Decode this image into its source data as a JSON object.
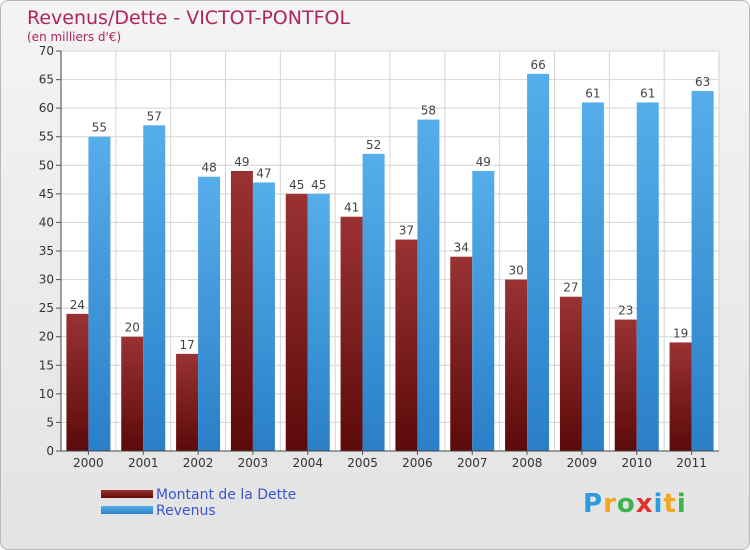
{
  "chart_data": {
    "type": "bar",
    "title": "Revenus/Dette - VICTOT-PONTFOL",
    "subtitle": "(en milliers d'€)",
    "categories": [
      "2000",
      "2001",
      "2002",
      "2003",
      "2004",
      "2005",
      "2006",
      "2007",
      "2008",
      "2009",
      "2010",
      "2011"
    ],
    "series": [
      {
        "name": "Montant de la Dette",
        "color": "#7a1c1c",
        "values": [
          24,
          20,
          17,
          49,
          45,
          41,
          37,
          34,
          30,
          27,
          23,
          19
        ]
      },
      {
        "name": "Revenus",
        "color": "#3d9be6",
        "values": [
          55,
          57,
          48,
          47,
          45,
          52,
          58,
          49,
          66,
          61,
          61,
          63
        ]
      }
    ],
    "ylim": [
      0,
      70
    ],
    "yticks": [
      0,
      5,
      10,
      15,
      20,
      25,
      30,
      35,
      40,
      45,
      50,
      55,
      60,
      65,
      70
    ],
    "grid": true,
    "legend_position": "bottom-left"
  },
  "logo": {
    "text": "Proxiti",
    "letters": [
      "P",
      "r",
      "o",
      "x",
      "i",
      "t",
      "i"
    ]
  }
}
